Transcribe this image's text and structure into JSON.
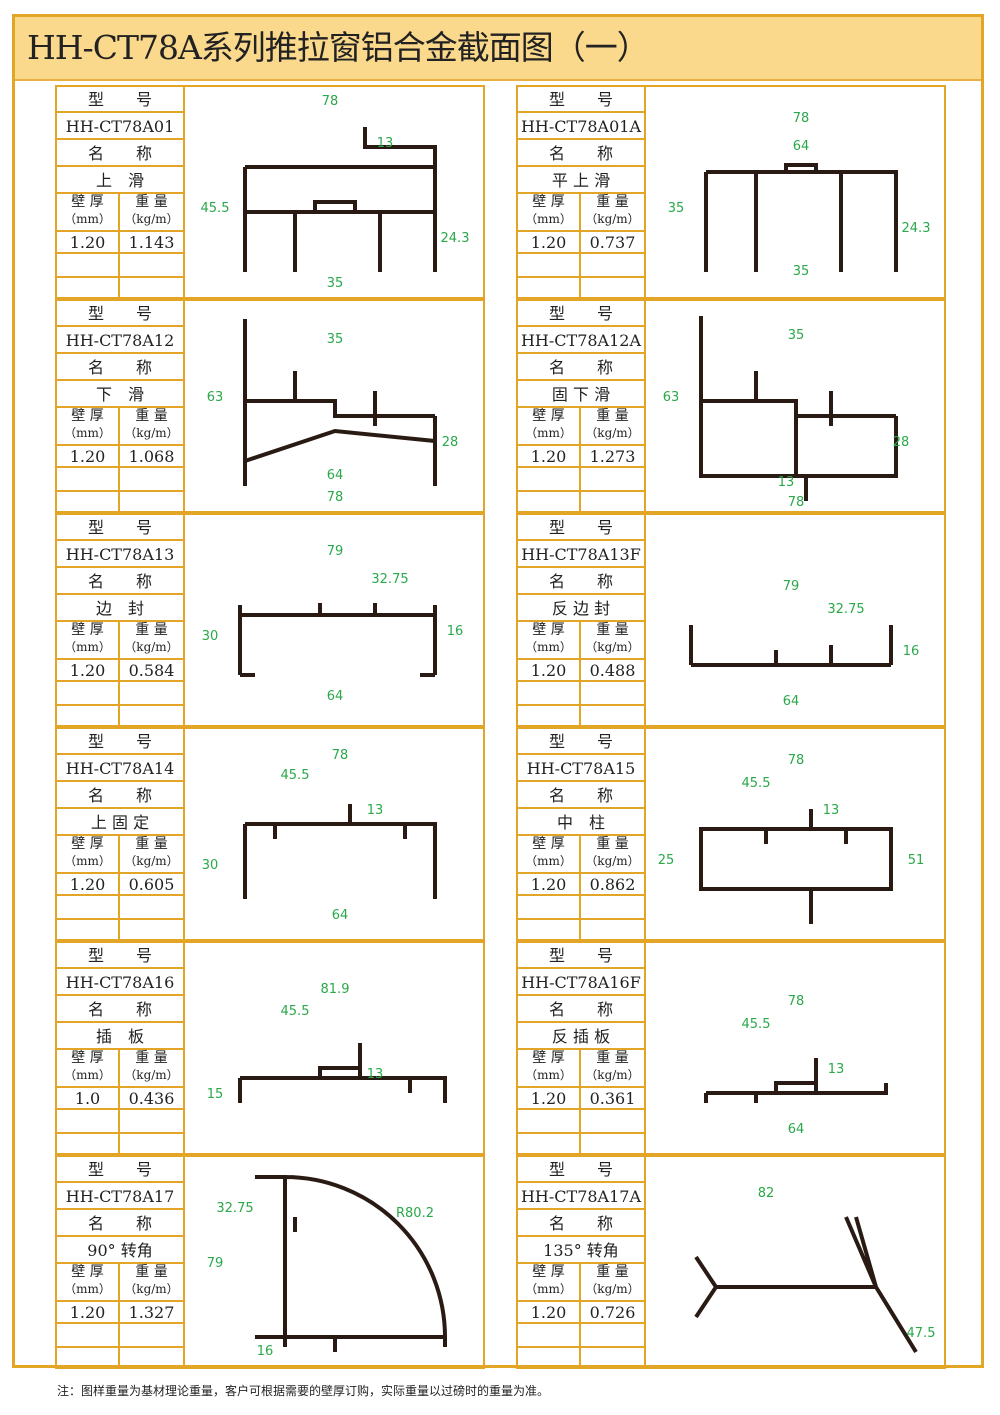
{
  "title": "HH-CT78A系列推拉窗铝合金截面图（一）",
  "labels": {
    "model": "型　　号",
    "name": "名　　称",
    "thickness": "壁 厚",
    "thickness_unit": "（mm）",
    "weight": "重 量",
    "weight_unit": "（kg/m）"
  },
  "profiles": [
    {
      "code": "HH-CT78A01",
      "name": "上　滑",
      "thickness": "1.20",
      "weight": "1.143",
      "dims": [
        "78",
        "13",
        "45.5",
        "24.3",
        "35"
      ]
    },
    {
      "code": "HH-CT78A01A",
      "name": "平 上 滑",
      "thickness": "1.20",
      "weight": "0.737",
      "dims": [
        "78",
        "64",
        "35",
        "24.3",
        "35"
      ]
    },
    {
      "code": "HH-CT78A12",
      "name": "下　滑",
      "thickness": "1.20",
      "weight": "1.068",
      "dims": [
        "35",
        "63",
        "28",
        "64",
        "78"
      ]
    },
    {
      "code": "HH-CT78A12A",
      "name": "固 下 滑",
      "thickness": "1.20",
      "weight": "1.273",
      "dims": [
        "35",
        "63",
        "28",
        "13",
        "78"
      ]
    },
    {
      "code": "HH-CT78A13",
      "name": "边　封",
      "thickness": "1.20",
      "weight": "0.584",
      "dims": [
        "79",
        "32.75",
        "30",
        "16",
        "64"
      ]
    },
    {
      "code": "HH-CT78A13F",
      "name": "反 边 封",
      "thickness": "1.20",
      "weight": "0.488",
      "dims": [
        "79",
        "32.75",
        "16",
        "64",
        ""
      ]
    },
    {
      "code": "HH-CT78A14",
      "name": "上 固 定",
      "thickness": "1.20",
      "weight": "0.605",
      "dims": [
        "78",
        "45.5",
        "13",
        "30",
        "64"
      ]
    },
    {
      "code": "HH-CT78A15",
      "name": "中　柱",
      "thickness": "1.20",
      "weight": "0.862",
      "dims": [
        "78",
        "45.5",
        "13",
        "25",
        "51"
      ]
    },
    {
      "code": "HH-CT78A16",
      "name": "插　板",
      "thickness": "1.0",
      "weight": "0.436",
      "dims": [
        "81.9",
        "45.5",
        "13",
        "15",
        ""
      ]
    },
    {
      "code": "HH-CT78A16F",
      "name": "反 插 板",
      "thickness": "1.20",
      "weight": "0.361",
      "dims": [
        "78",
        "45.5",
        "13",
        "64",
        ""
      ]
    },
    {
      "code": "HH-CT78A17",
      "name": "90° 转角",
      "thickness": "1.20",
      "weight": "1.327",
      "dims": [
        "32.75",
        "R80.2",
        "79",
        "16",
        ""
      ]
    },
    {
      "code": "HH-CT78A17A",
      "name": "135° 转角",
      "thickness": "1.20",
      "weight": "0.726",
      "dims": [
        "82",
        "47.5",
        "",
        "",
        ""
      ]
    }
  ],
  "note": "注：图样重量为基材理论重量，客户可根据需要的壁厚订购，实际重量以过磅时的重量为准。",
  "colors": {
    "border": "#e2a526",
    "title_bg": "#fbd98c",
    "dimension_text": "#2aa84a",
    "dimension_line": "#e0304a"
  }
}
